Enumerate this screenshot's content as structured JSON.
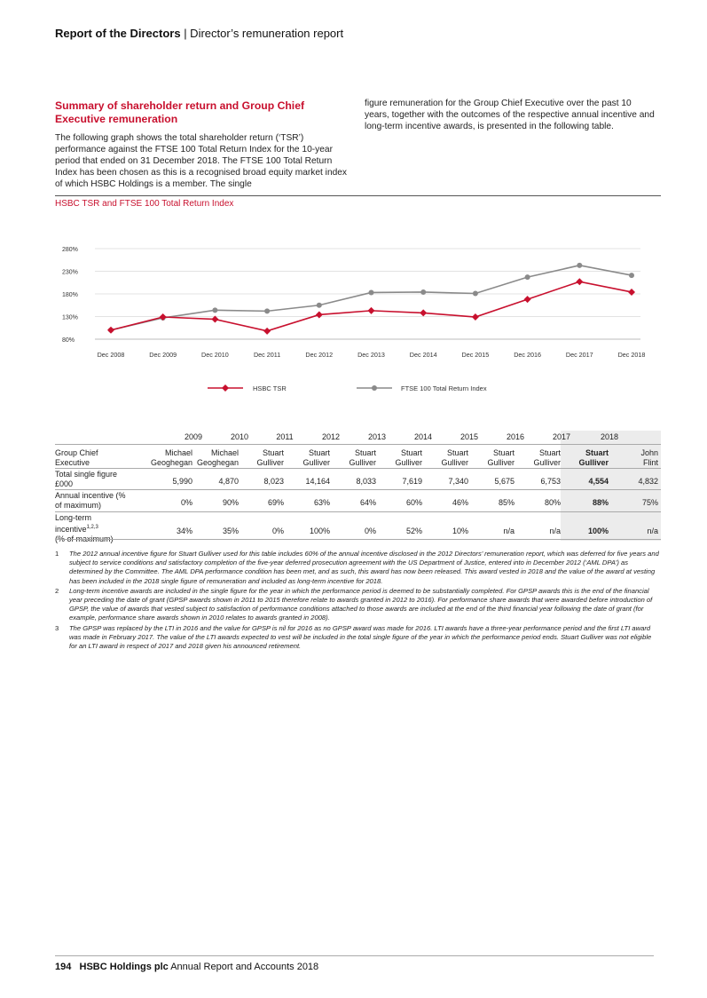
{
  "header": {
    "bold": "Report of the Directors",
    "rest": " | Director’s remuneration report"
  },
  "section": {
    "title": "Summary of shareholder return and Group Chief Executive remuneration",
    "para_left": "The following graph shows the total shareholder return (‘TSR’) performance against the FTSE 100 Total Return Index for the 10-year period that ended on 31 December 2018. The FTSE 100 Total Return Index has been chosen as this is a recognised broad equity market index of which HSBC Holdings is a member. The single",
    "para_right": "figure remuneration for the Group Chief Executive over the past 10 years, together with the outcomes of the respective annual incentive and long-term incentive awards, is presented in the following table."
  },
  "chart_title": "HSBC TSR and FTSE 100 Total Return Index",
  "chart_data": {
    "type": "line",
    "categories": [
      "Dec 2008",
      "Dec 2009",
      "Dec 2010",
      "Dec 2011",
      "Dec 2012",
      "Dec 2013",
      "Dec 2014",
      "Dec 2015",
      "Dec 2016",
      "Dec 2017",
      "Dec 2018"
    ],
    "y_ticks": [
      "80%",
      "130%",
      "180%",
      "230%",
      "280%"
    ],
    "ylim": [
      80,
      280
    ],
    "grid": true,
    "legend_position": "bottom",
    "series": [
      {
        "name": "HSBC TSR",
        "color": "#c8102e",
        "marker": "diamond",
        "values": [
          100,
          129,
          124,
          98,
          134,
          143,
          138,
          129,
          168,
          207,
          184
        ]
      },
      {
        "name": "FTSE 100 Total Return Index",
        "color": "#8a8a8a",
        "marker": "circle",
        "values": [
          100,
          127,
          144,
          142,
          155,
          183,
          184,
          181,
          217,
          243,
          221
        ]
      }
    ]
  },
  "table": {
    "row_labels": {
      "role": "Group Chief Executive",
      "total": "Total single figure £000",
      "annual": "Annual incentive (% of maximum)",
      "longterm": "Long-term incentive",
      "longterm_sup": "1,2,3",
      "longterm_unit": "(% of maximum)"
    },
    "years": [
      "2009",
      "2010",
      "2011",
      "2012",
      "2013",
      "2014",
      "2015",
      "2016",
      "2017",
      "2018"
    ],
    "year_last_highlight": "2018",
    "executives": [
      [
        "Michael",
        "Geoghegan"
      ],
      [
        "Michael",
        "Geoghegan"
      ],
      [
        "Stuart",
        "Gulliver"
      ],
      [
        "Stuart",
        "Gulliver"
      ],
      [
        "Stuart",
        "Gulliver"
      ],
      [
        "Stuart",
        "Gulliver"
      ],
      [
        "Stuart",
        "Gulliver"
      ],
      [
        "Stuart",
        "Gulliver"
      ],
      [
        "Stuart",
        "Gulliver"
      ],
      [
        "Stuart",
        "Gulliver"
      ],
      [
        "John",
        "Flint"
      ]
    ],
    "total_single_figure": [
      "5,990",
      "4,870",
      "8,023",
      "14,164",
      "8,033",
      "7,619",
      "7,340",
      "5,675",
      "6,753",
      "4,554",
      "4,832"
    ],
    "annual_incentive": [
      "0%",
      "90%",
      "69%",
      "63%",
      "64%",
      "60%",
      "46%",
      "85%",
      "80%",
      "88%",
      "75%"
    ],
    "long_term_incentive": [
      "34%",
      "35%",
      "0%",
      "100%",
      "0%",
      "52%",
      "10%",
      "n/a",
      "n/a",
      "100%",
      "n/a"
    ]
  },
  "footnotes": [
    {
      "num": "1",
      "text": "The 2012 annual incentive figure for Stuart Gulliver used for this table includes 60% of the annual incentive disclosed in the 2012 Directors’ remuneration report, which was deferred for five years and subject to service conditions and satisfactory completion of the five-year deferred prosecution agreement with the US Department of Justice, entered into in December 2012 (‘AML DPA’) as determined by the Committee. The AML DPA performance condition has been met, and as such, this award has now been released. This award vested in 2018 and the value of the award at vesting has been included in the 2018 single figure of remuneration and included as long-term incentive for 2018."
    },
    {
      "num": "2",
      "text": "Long-term incentive awards are included in the single figure for the year in which the performance period is deemed to be substantially completed. For GPSP awards this is the end of the financial year preceding the date of grant (GPSP awards shown in 2011 to 2015 therefore relate to awards granted in 2012 to 2016). For performance share awards that were awarded before introduction of GPSP, the value of awards that vested subject to satisfaction of performance conditions attached to those awards are included at the end of the third financial year following the date of grant (for example, performance share awards shown in 2010 relates to awards granted in 2008)."
    },
    {
      "num": "3",
      "text": "The GPSP was replaced by the LTI in 2016 and the value for GPSP is nil for 2016 as no GPSP award was made for 2016. LTI awards have a three-year performance period and the first LTI award was made in February 2017. The value of the LTI awards expected to vest will be included in the total single figure of the year in which the performance period ends. Stuart Gulliver was not eligible for an LTI award in respect of 2017 and 2018 given his announced retirement."
    }
  ],
  "footer": {
    "page": "194",
    "company": "HSBC Holdings plc",
    "doc": " Annual Report and Accounts 2018"
  }
}
